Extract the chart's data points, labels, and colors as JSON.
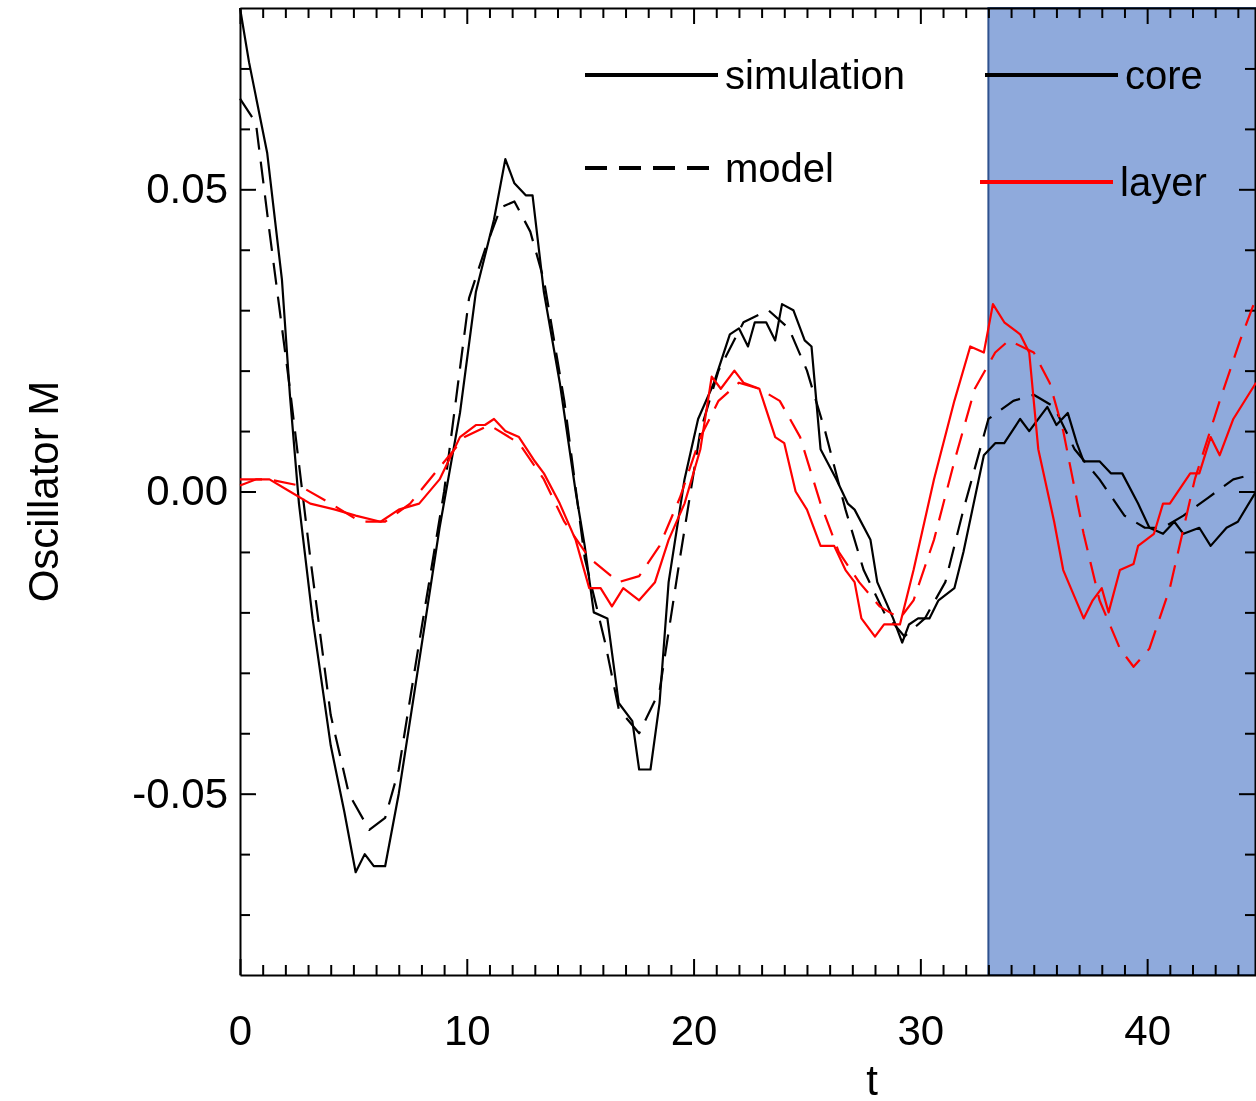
{
  "chart_data": {
    "type": "line",
    "xlabel": "t",
    "ylabel": "Oscillator M",
    "xlim": [
      0,
      44.8
    ],
    "ylim": [
      -0.08,
      0.08
    ],
    "xticks": [
      0,
      {
        "value": 1,
        "label": null
      },
      {
        "value": 2,
        "label": null
      },
      {
        "value": 3,
        "label": null
      },
      {
        "value": 4,
        "label": null
      },
      {
        "value": 5,
        "label": null
      },
      {
        "value": 6,
        "label": null
      },
      {
        "value": 7,
        "label": null
      },
      {
        "value": 8,
        "label": null
      },
      {
        "value": 9,
        "label": null
      },
      10,
      {
        "value": 11,
        "label": null
      },
      {
        "value": 12,
        "label": null
      },
      {
        "value": 13,
        "label": null
      },
      {
        "value": 14,
        "label": null
      },
      {
        "value": 15,
        "label": null
      },
      {
        "value": 16,
        "label": null
      },
      {
        "value": 17,
        "label": null
      },
      {
        "value": 18,
        "label": null
      },
      {
        "value": 19,
        "label": null
      },
      20,
      {
        "value": 21,
        "label": null
      },
      {
        "value": 22,
        "label": null
      },
      {
        "value": 23,
        "label": null
      },
      {
        "value": 24,
        "label": null
      },
      {
        "value": 25,
        "label": null
      },
      {
        "value": 26,
        "label": null
      },
      {
        "value": 27,
        "label": null
      },
      {
        "value": 28,
        "label": null
      },
      {
        "value": 29,
        "label": null
      },
      30,
      {
        "value": 31,
        "label": null
      },
      {
        "value": 32,
        "label": null
      },
      {
        "value": 33,
        "label": null
      },
      {
        "value": 34,
        "label": null
      },
      {
        "value": 35,
        "label": null
      },
      {
        "value": 36,
        "label": null
      },
      {
        "value": 37,
        "label": null
      },
      {
        "value": 38,
        "label": null
      },
      {
        "value": 39,
        "label": null
      },
      40,
      {
        "value": 41,
        "label": null
      },
      {
        "value": 42,
        "label": null
      },
      {
        "value": 43,
        "label": null
      },
      {
        "value": 44,
        "label": null
      }
    ],
    "yticks": [
      {
        "value": -0.07,
        "label": null
      },
      {
        "value": -0.06,
        "label": null
      },
      {
        "value": -0.05,
        "label": "-0.05"
      },
      {
        "value": -0.04,
        "label": null
      },
      {
        "value": -0.03,
        "label": null
      },
      {
        "value": -0.02,
        "label": null
      },
      {
        "value": -0.01,
        "label": null
      },
      {
        "value": 0,
        "label": "0.00"
      },
      {
        "value": 0.01,
        "label": null
      },
      {
        "value": 0.02,
        "label": null
      },
      {
        "value": 0.03,
        "label": null
      },
      {
        "value": 0.04,
        "label": null
      },
      {
        "value": 0.05,
        "label": "0.05"
      },
      {
        "value": 0.06,
        "label": null
      },
      {
        "value": 0.07,
        "label": null
      }
    ],
    "grid": false,
    "annotations": [
      "simulation",
      "model",
      "core",
      "layer"
    ],
    "bands": [
      {
        "axis": "x",
        "from": 33,
        "to": 44.8,
        "color": "#4472c4"
      }
    ],
    "series": [
      {
        "color": "#000000",
        "line_style": "solid",
        "x": [
          0,
          0.4,
          1.2,
          1.85,
          2.2,
          2.6,
          3.2,
          4.0,
          4.6,
          5.1,
          5.5,
          5.9,
          6.4,
          7.0,
          7.7,
          8.8,
          9.7,
          10.4,
          10.8,
          11.2,
          11.7,
          12.1,
          12.6,
          12.9,
          13.4,
          14.1,
          14.8,
          15.2,
          15.6,
          16.2,
          16.7,
          17.3,
          17.6,
          18.1,
          18.5,
          18.9,
          19.6,
          20.2,
          20.9,
          21.6,
          22.0,
          22.4,
          22.7,
          23.2,
          23.6,
          23.9,
          24.4,
          24.9,
          25.2,
          25.6,
          26.3,
          26.8,
          27.1,
          27.8,
          28.1,
          28.8,
          29.2,
          29.5,
          29.9,
          30.4,
          30.8,
          31.5,
          31.9,
          32.8,
          33.3,
          33.7,
          34.4,
          34.8,
          35.6,
          36.0,
          36.5,
          36.9,
          37.2,
          37.9,
          38.4,
          38.9,
          39.6,
          40.1,
          40.7,
          41.2,
          41.6,
          42.3,
          42.8,
          43.5,
          44.0,
          44.8
        ],
        "values": [
          0.08,
          0.071,
          0.056,
          0.035,
          0.016,
          -0.002,
          -0.021,
          -0.042,
          -0.053,
          -0.063,
          -0.06,
          -0.062,
          -0.062,
          -0.05,
          -0.033,
          -0.006,
          0.013,
          0.033,
          0.039,
          0.045,
          0.055,
          0.051,
          0.049,
          0.049,
          0.033,
          0.018,
          0,
          -0.009,
          -0.02,
          -0.021,
          -0.035,
          -0.038,
          -0.046,
          -0.046,
          -0.035,
          -0.015,
          0.002,
          0.012,
          0.018,
          0.026,
          0.027,
          0.024,
          0.028,
          0.028,
          0.025,
          0.031,
          0.03,
          0.025,
          0.024,
          0.007,
          0.002,
          -0.002,
          -0.003,
          -0.008,
          -0.015,
          -0.021,
          -0.025,
          -0.022,
          -0.021,
          -0.021,
          -0.018,
          -0.016,
          -0.01,
          0.006,
          0.008,
          0.008,
          0.012,
          0.01,
          0.014,
          0.011,
          0.013,
          0.008,
          0.005,
          0.005,
          0.003,
          0.003,
          -0.002,
          -0.006,
          -0.007,
          -0.005,
          -0.007,
          -0.006,
          -0.009,
          -0.006,
          -0.005,
          0
        ]
      },
      {
        "color": "#000000",
        "line_style": "dashed",
        "x": [
          0,
          0.7,
          1.3,
          2.2,
          3.1,
          4.0,
          4.8,
          5.7,
          6.4,
          7.0,
          7.9,
          9.0,
          10.1,
          10.8,
          11.5,
          12.1,
          12.8,
          13.4,
          14.3,
          15.2,
          16.1,
          16.7,
          17.6,
          18.5,
          19.4,
          20.3,
          21.1,
          22.2,
          23.3,
          24.2,
          25.0,
          25.8,
          26.7,
          27.5,
          28.4,
          29.3,
          30.2,
          31.1,
          31.9,
          33.0,
          34.1,
          35.0,
          35.9,
          36.8,
          37.9,
          39.0,
          39.9,
          40.7,
          41.6,
          42.7,
          43.8,
          44.8
        ],
        "values": [
          0.065,
          0.061,
          0.043,
          0.017,
          -0.011,
          -0.037,
          -0.05,
          -0.056,
          -0.054,
          -0.046,
          -0.025,
          0,
          0.032,
          0.04,
          0.047,
          0.048,
          0.043,
          0.035,
          0.015,
          -0.011,
          -0.025,
          -0.036,
          -0.04,
          -0.033,
          -0.011,
          0.01,
          0.02,
          0.028,
          0.03,
          0.027,
          0.02,
          0.01,
          -0.003,
          -0.013,
          -0.02,
          -0.024,
          -0.021,
          -0.015,
          -0.003,
          0.012,
          0.015,
          0.016,
          0.014,
          0.007,
          0.002,
          -0.004,
          -0.006,
          -0.006,
          -0.004,
          -0.001,
          0.002,
          0.003
        ]
      },
      {
        "color": "#ff0000",
        "line_style": "solid",
        "x": [
          0,
          0.7,
          1.3,
          2.2,
          3.1,
          4.2,
          5.1,
          6.2,
          7.0,
          7.9,
          8.8,
          9.7,
          10.4,
          10.8,
          11.2,
          11.7,
          12.3,
          13.0,
          13.4,
          14.1,
          14.8,
          15.4,
          15.9,
          16.4,
          16.9,
          17.6,
          18.3,
          18.9,
          19.6,
          20.3,
          20.8,
          21.2,
          21.8,
          22.2,
          22.9,
          23.6,
          24.0,
          24.5,
          25.0,
          25.6,
          26.2,
          26.7,
          27.1,
          27.4,
          28.0,
          28.4,
          29.1,
          29.7,
          30.6,
          31.5,
          32.2,
          32.8,
          33.2,
          33.7,
          34.4,
          34.8,
          35.2,
          35.9,
          36.3,
          37.2,
          37.6,
          38.0,
          38.3,
          38.8,
          39.4,
          39.6,
          40.3,
          40.7,
          41.0,
          41.9,
          42.3,
          42.8,
          43.2,
          43.8,
          44.8
        ],
        "values": [
          0.001,
          0.002,
          0.002,
          0,
          -0.002,
          -0.003,
          -0.004,
          -0.005,
          -0.003,
          -0.002,
          0.002,
          0.009,
          0.011,
          0.011,
          0.012,
          0.01,
          0.009,
          0.005,
          0.003,
          -0.002,
          -0.008,
          -0.016,
          -0.016,
          -0.019,
          -0.016,
          -0.018,
          -0.015,
          -0.008,
          -0.002,
          0.007,
          0.019,
          0.017,
          0.02,
          0.018,
          0.017,
          0.009,
          0.008,
          0,
          -0.003,
          -0.009,
          -0.009,
          -0.013,
          -0.015,
          -0.021,
          -0.024,
          -0.022,
          -0.022,
          -0.013,
          0.002,
          0.015,
          0.024,
          0.023,
          0.031,
          0.028,
          0.026,
          0.023,
          0.007,
          -0.005,
          -0.013,
          -0.021,
          -0.018,
          -0.016,
          -0.02,
          -0.013,
          -0.012,
          -0.009,
          -0.007,
          -0.002,
          -0.002,
          0.003,
          0.003,
          0.009,
          0.006,
          0.012,
          0.018
        ]
      },
      {
        "color": "#ff0000",
        "line_style": "dashed",
        "x": [
          0,
          1.3,
          2.6,
          4.0,
          5.3,
          6.4,
          7.5,
          8.8,
          9.9,
          11.0,
          12.3,
          13.4,
          14.3,
          15.4,
          16.7,
          17.6,
          18.5,
          19.4,
          20.3,
          21.1,
          22.0,
          22.9,
          23.8,
          24.7,
          25.6,
          26.4,
          27.3,
          28.2,
          29.1,
          29.7,
          30.6,
          31.5,
          32.4,
          33.3,
          33.9,
          35.0,
          35.7,
          36.3,
          37.2,
          37.9,
          38.8,
          39.4,
          40.1,
          41.0,
          42.1,
          43.2,
          44.1,
          44.8
        ],
        "values": [
          0.002,
          0.002,
          0.001,
          -0.002,
          -0.005,
          -0.005,
          -0.002,
          0.004,
          0.009,
          0.011,
          0.008,
          0.002,
          -0.005,
          -0.011,
          -0.015,
          -0.014,
          -0.009,
          -0.001,
          0.009,
          0.015,
          0.018,
          0.017,
          0.015,
          0.009,
          -0.002,
          -0.01,
          -0.015,
          -0.019,
          -0.021,
          -0.018,
          -0.008,
          0.005,
          0.017,
          0.023,
          0.025,
          0.023,
          0.018,
          0.01,
          -0.007,
          -0.018,
          -0.026,
          -0.029,
          -0.026,
          -0.016,
          0.002,
          0.015,
          0.025,
          0.032
        ]
      }
    ]
  }
}
